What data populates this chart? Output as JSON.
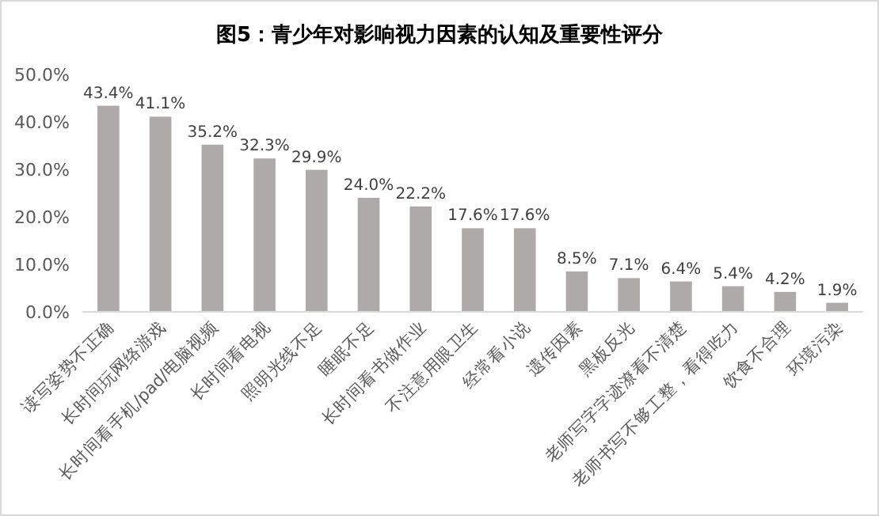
{
  "chart_data": {
    "type": "bar",
    "title": "图5：青少年对影响视力因素的认知及重要性评分",
    "categories": [
      "读写姿势不正确",
      "长时间玩网络游戏",
      "长时间看手机/pad/电脑视频",
      "长时间看电视",
      "照明光线不足",
      "睡眠不足",
      "长时间看书做作业",
      "不注意用眼卫生",
      "经常看小说",
      "遗传因素",
      "黑板反光",
      "老师写字字迹潦看不清楚",
      "老师书写不够工整，看得吃力",
      "饮食不合理",
      "环境污染"
    ],
    "values": [
      43.4,
      41.1,
      35.2,
      32.3,
      29.9,
      24.0,
      22.2,
      17.6,
      17.6,
      8.5,
      7.1,
      6.4,
      5.4,
      4.2,
      1.9
    ],
    "value_labels": [
      "43.4%",
      "41.1%",
      "35.2%",
      "32.3%",
      "29.9%",
      "24.0%",
      "22.2%",
      "17.6%",
      "17.6%",
      "8.5%",
      "7.1%",
      "6.4%",
      "5.4%",
      "4.2%",
      "1.9%"
    ],
    "color": "#aeaaaa",
    "ylim": [
      0,
      50
    ],
    "yticks": [
      {
        "value": 0,
        "label": "0.0%"
      },
      {
        "value": 10,
        "label": "10.0%"
      },
      {
        "value": 20,
        "label": "20.0%"
      },
      {
        "value": 30,
        "label": "30.0%"
      },
      {
        "value": 40,
        "label": "40.0%"
      },
      {
        "value": 50,
        "label": "50.0%"
      }
    ],
    "grid": false
  }
}
